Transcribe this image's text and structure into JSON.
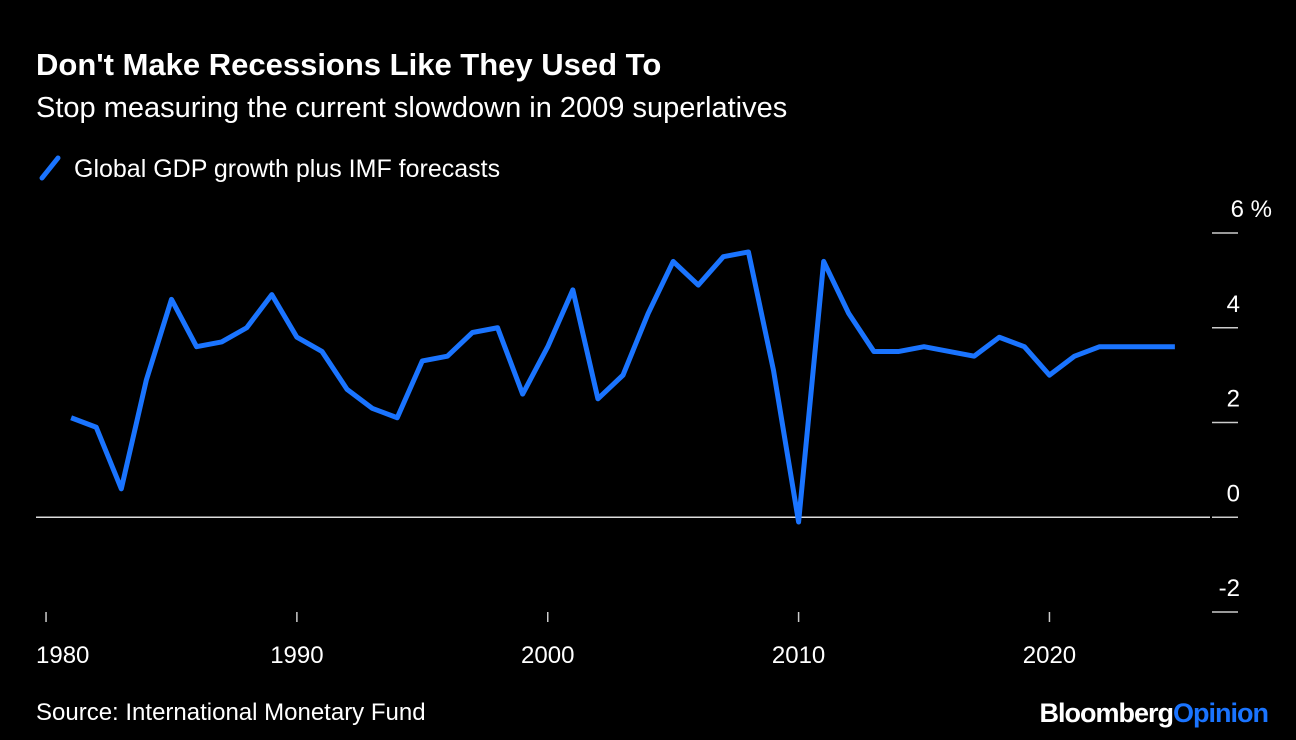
{
  "chart_data": {
    "type": "line",
    "title": "Don't Make Recessions Like They Used To",
    "subtitle": "Stop measuring the current slowdown in 2009 superlatives",
    "source": "Source: International Monetary Fund",
    "brand": [
      "Bloomberg",
      "Opinion"
    ],
    "x": [
      1981,
      1982,
      1983,
      1984,
      1985,
      1986,
      1987,
      1988,
      1989,
      1990,
      1991,
      1992,
      1993,
      1994,
      1995,
      1996,
      1997,
      1998,
      1999,
      2000,
      2001,
      2002,
      2003,
      2004,
      2005,
      2006,
      2007,
      2008,
      2009,
      2010,
      2011,
      2012,
      2013,
      2014,
      2015,
      2016,
      2017,
      2018,
      2019,
      2020,
      2021,
      2022,
      2023,
      2024,
      2025
    ],
    "series": [
      {
        "name": "Global GDP growth plus IMF forecasts",
        "color": "#1a74ff",
        "values": [
          2.1,
          1.9,
          0.6,
          2.9,
          4.6,
          3.6,
          3.7,
          4.0,
          4.7,
          3.8,
          3.5,
          2.7,
          2.3,
          2.1,
          3.3,
          3.4,
          3.9,
          4.0,
          2.6,
          3.6,
          4.8,
          2.5,
          3.0,
          4.3,
          5.4,
          4.9,
          5.5,
          5.6,
          3.1,
          -0.1,
          5.4,
          4.3,
          3.5,
          3.5,
          3.6,
          3.5,
          3.4,
          3.8,
          3.6,
          3.0,
          3.4,
          3.6,
          3.6,
          3.6,
          3.6
        ]
      }
    ],
    "xlim": [
      1979.6,
      2026.4
    ],
    "xticks": [
      1980,
      1990,
      2000,
      2010,
      2020
    ],
    "ylim": [
      -2,
      6
    ],
    "yticks": [
      -2,
      0,
      2,
      4,
      {
        "value": 6,
        "label": "6 %"
      }
    ]
  }
}
